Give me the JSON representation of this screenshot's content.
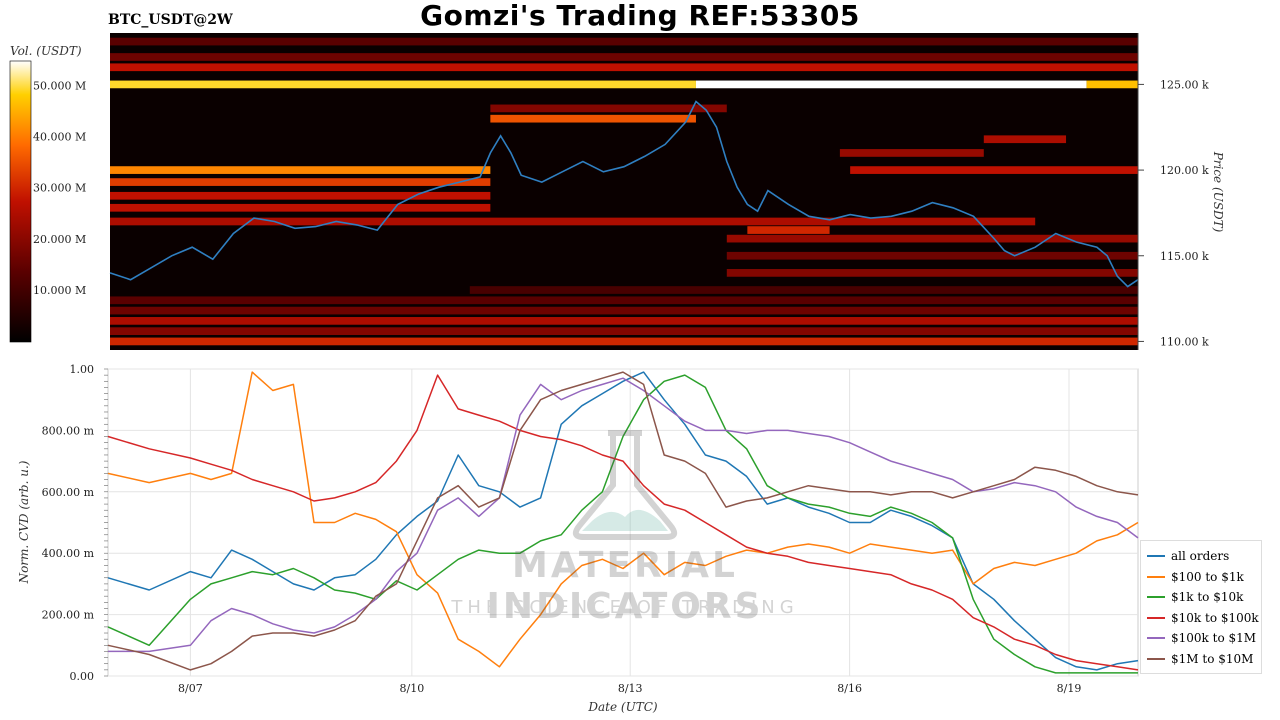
{
  "header": {
    "title": "Gomzi's Trading REF:53305",
    "symbol": "BTC_USDT@2W"
  },
  "watermark": {
    "brand": "MATERIAL INDICATORS",
    "tagline": "THE SCIENCE OF TRADING"
  },
  "chart_data": [
    {
      "type": "heatmap",
      "title": "BTC_USDT@2W",
      "colorbar": {
        "label": "Vol. (USDT)",
        "ticks": [
          "10.000 M",
          "20.000 M",
          "30.000 M",
          "40.000 M",
          "50.000 M"
        ],
        "range": [
          0,
          55
        ],
        "colors": [
          "#000000",
          "#5a0000",
          "#c01000",
          "#ff6a00",
          "#ffd000",
          "#ffffff"
        ]
      },
      "ylabel": "Price (USDT)",
      "yticks": [
        "110.00 k",
        "115.00 k",
        "120.00 k",
        "125.00 k"
      ],
      "ylim": [
        109.5,
        128
      ],
      "bands": [
        {
          "price": 110.0,
          "intensity": 0.55,
          "from": 0,
          "to": 1
        },
        {
          "price": 110.6,
          "intensity": 0.35,
          "from": 0,
          "to": 1
        },
        {
          "price": 111.2,
          "intensity": 0.45,
          "from": 0,
          "to": 1
        },
        {
          "price": 111.8,
          "intensity": 0.3,
          "from": 0,
          "to": 1
        },
        {
          "price": 112.4,
          "intensity": 0.25,
          "from": 0,
          "to": 1
        },
        {
          "price": 113.0,
          "intensity": 0.2,
          "from": 0.35,
          "to": 1
        },
        {
          "price": 114.0,
          "intensity": 0.35,
          "from": 0.6,
          "to": 1
        },
        {
          "price": 115.0,
          "intensity": 0.3,
          "from": 0.6,
          "to": 1
        },
        {
          "price": 116.0,
          "intensity": 0.4,
          "from": 0.6,
          "to": 1
        },
        {
          "price": 116.5,
          "intensity": 0.55,
          "from": 0.62,
          "to": 0.7
        },
        {
          "price": 117.0,
          "intensity": 0.45,
          "from": 0.0,
          "to": 0.9
        },
        {
          "price": 117.8,
          "intensity": 0.5,
          "from": 0.0,
          "to": 0.37
        },
        {
          "price": 118.5,
          "intensity": 0.5,
          "from": 0.0,
          "to": 0.37
        },
        {
          "price": 119.3,
          "intensity": 0.6,
          "from": 0.0,
          "to": 0.37
        },
        {
          "price": 120.0,
          "intensity": 0.75,
          "from": 0.0,
          "to": 0.37
        },
        {
          "price": 120.0,
          "intensity": 0.5,
          "from": 0.72,
          "to": 1
        },
        {
          "price": 121.0,
          "intensity": 0.4,
          "from": 0.71,
          "to": 0.85
        },
        {
          "price": 121.8,
          "intensity": 0.45,
          "from": 0.85,
          "to": 0.93
        },
        {
          "price": 123.0,
          "intensity": 0.65,
          "from": 0.37,
          "to": 0.57
        },
        {
          "price": 123.6,
          "intensity": 0.35,
          "from": 0.37,
          "to": 0.6
        },
        {
          "price": 125.0,
          "intensity": 0.9,
          "from": 0.0,
          "to": 0.57
        },
        {
          "price": 125.0,
          "intensity": 1.0,
          "from": 0.57,
          "to": 0.95
        },
        {
          "price": 125.0,
          "intensity": 0.85,
          "from": 0.95,
          "to": 1
        },
        {
          "price": 126.0,
          "intensity": 0.5,
          "from": 0.0,
          "to": 1
        },
        {
          "price": 126.6,
          "intensity": 0.3,
          "from": 0.0,
          "to": 1
        },
        {
          "price": 127.5,
          "intensity": 0.25,
          "from": 0.0,
          "to": 1
        }
      ],
      "price_line": {
        "name": "price",
        "color": "#2f7fc1",
        "x": [
          0,
          0.02,
          0.04,
          0.06,
          0.08,
          0.1,
          0.12,
          0.14,
          0.16,
          0.18,
          0.2,
          0.22,
          0.24,
          0.26,
          0.28,
          0.3,
          0.32,
          0.34,
          0.36,
          0.37,
          0.38,
          0.39,
          0.4,
          0.42,
          0.44,
          0.46,
          0.48,
          0.5,
          0.52,
          0.54,
          0.56,
          0.57,
          0.58,
          0.59,
          0.6,
          0.61,
          0.62,
          0.63,
          0.64,
          0.66,
          0.68,
          0.7,
          0.72,
          0.74,
          0.76,
          0.78,
          0.8,
          0.82,
          0.84,
          0.86,
          0.87,
          0.88,
          0.9,
          0.92,
          0.94,
          0.96,
          0.97,
          0.98,
          0.99,
          1.0
        ],
        "y": [
          114.0,
          113.6,
          114.3,
          115.0,
          115.5,
          114.8,
          116.3,
          117.2,
          117.0,
          116.6,
          116.7,
          117.0,
          116.8,
          116.5,
          118.0,
          118.6,
          119.0,
          119.3,
          119.6,
          121.0,
          122.0,
          121.0,
          119.7,
          119.3,
          119.9,
          120.5,
          119.9,
          120.2,
          120.8,
          121.5,
          122.8,
          124.0,
          123.5,
          122.5,
          120.5,
          119.0,
          118.0,
          117.6,
          118.8,
          118.0,
          117.3,
          117.1,
          117.4,
          117.2,
          117.3,
          117.6,
          118.1,
          117.8,
          117.3,
          116.0,
          115.3,
          115.0,
          115.5,
          116.3,
          115.8,
          115.5,
          115.0,
          113.8,
          113.2,
          113.6
        ]
      }
    },
    {
      "type": "line",
      "xlabel": "Date (UTC)",
      "ylabel": "Norm. CVD (arb. u.)",
      "xticks": [
        "8/07",
        "8/10",
        "8/13",
        "8/16",
        "8/19"
      ],
      "yticks": [
        "0.00",
        "200.00 m",
        "400.00 m",
        "600.00 m",
        "800.00 m",
        "1.00"
      ],
      "ylim": [
        0,
        1
      ],
      "grid": true,
      "legend": "right",
      "x": [
        0,
        0.04,
        0.08,
        0.1,
        0.12,
        0.14,
        0.16,
        0.18,
        0.2,
        0.22,
        0.24,
        0.26,
        0.28,
        0.3,
        0.32,
        0.34,
        0.36,
        0.38,
        0.4,
        0.42,
        0.44,
        0.46,
        0.48,
        0.5,
        0.52,
        0.54,
        0.56,
        0.58,
        0.6,
        0.62,
        0.64,
        0.66,
        0.68,
        0.7,
        0.72,
        0.74,
        0.76,
        0.78,
        0.8,
        0.82,
        0.84,
        0.86,
        0.88,
        0.9,
        0.92,
        0.94,
        0.96,
        0.98,
        1.0
      ],
      "series": [
        {
          "name": "all orders",
          "color": "#1f77b4",
          "values": [
            0.32,
            0.28,
            0.34,
            0.32,
            0.41,
            0.38,
            0.34,
            0.3,
            0.28,
            0.32,
            0.33,
            0.38,
            0.46,
            0.52,
            0.57,
            0.72,
            0.62,
            0.6,
            0.55,
            0.58,
            0.82,
            0.88,
            0.92,
            0.96,
            0.99,
            0.9,
            0.82,
            0.72,
            0.7,
            0.65,
            0.56,
            0.58,
            0.55,
            0.53,
            0.5,
            0.5,
            0.54,
            0.52,
            0.49,
            0.45,
            0.3,
            0.25,
            0.18,
            0.12,
            0.06,
            0.03,
            0.02,
            0.04,
            0.05
          ]
        },
        {
          "name": "$100 to $1k",
          "color": "#ff7f0e",
          "values": [
            0.66,
            0.63,
            0.66,
            0.64,
            0.66,
            0.99,
            0.93,
            0.95,
            0.5,
            0.5,
            0.53,
            0.51,
            0.47,
            0.33,
            0.27,
            0.12,
            0.08,
            0.03,
            0.12,
            0.2,
            0.3,
            0.36,
            0.38,
            0.35,
            0.4,
            0.33,
            0.37,
            0.36,
            0.39,
            0.41,
            0.4,
            0.42,
            0.43,
            0.42,
            0.4,
            0.43,
            0.42,
            0.41,
            0.4,
            0.41,
            0.3,
            0.35,
            0.37,
            0.36,
            0.38,
            0.4,
            0.44,
            0.46,
            0.5
          ]
        },
        {
          "name": "$1k to $10k",
          "color": "#2ca02c",
          "values": [
            0.16,
            0.1,
            0.25,
            0.3,
            0.32,
            0.34,
            0.33,
            0.35,
            0.32,
            0.28,
            0.27,
            0.25,
            0.31,
            0.28,
            0.33,
            0.38,
            0.41,
            0.4,
            0.4,
            0.44,
            0.46,
            0.54,
            0.6,
            0.78,
            0.9,
            0.96,
            0.98,
            0.94,
            0.8,
            0.74,
            0.62,
            0.58,
            0.56,
            0.55,
            0.53,
            0.52,
            0.55,
            0.53,
            0.5,
            0.45,
            0.25,
            0.12,
            0.07,
            0.03,
            0.01,
            0.01,
            0.01,
            0.01,
            0.01
          ]
        },
        {
          "name": "$10k to $100k",
          "color": "#d62728",
          "values": [
            0.78,
            0.74,
            0.71,
            0.69,
            0.67,
            0.64,
            0.62,
            0.6,
            0.57,
            0.58,
            0.6,
            0.63,
            0.7,
            0.8,
            0.98,
            0.87,
            0.85,
            0.83,
            0.8,
            0.78,
            0.77,
            0.75,
            0.72,
            0.7,
            0.62,
            0.56,
            0.54,
            0.5,
            0.46,
            0.42,
            0.4,
            0.39,
            0.37,
            0.36,
            0.35,
            0.34,
            0.33,
            0.3,
            0.28,
            0.25,
            0.19,
            0.16,
            0.12,
            0.1,
            0.07,
            0.05,
            0.04,
            0.03,
            0.02
          ]
        },
        {
          "name": "$100k to $1M",
          "color": "#9467bd",
          "values": [
            0.08,
            0.08,
            0.1,
            0.18,
            0.22,
            0.2,
            0.17,
            0.15,
            0.14,
            0.16,
            0.2,
            0.25,
            0.34,
            0.4,
            0.54,
            0.58,
            0.52,
            0.58,
            0.85,
            0.95,
            0.9,
            0.93,
            0.95,
            0.97,
            0.93,
            0.88,
            0.83,
            0.8,
            0.8,
            0.79,
            0.8,
            0.8,
            0.79,
            0.78,
            0.76,
            0.73,
            0.7,
            0.68,
            0.66,
            0.64,
            0.6,
            0.61,
            0.63,
            0.62,
            0.6,
            0.55,
            0.52,
            0.5,
            0.45
          ]
        },
        {
          "name": "$1M to $10M",
          "color": "#8c564b",
          "values": [
            0.1,
            0.07,
            0.02,
            0.04,
            0.08,
            0.13,
            0.14,
            0.14,
            0.13,
            0.15,
            0.18,
            0.26,
            0.3,
            0.44,
            0.58,
            0.62,
            0.55,
            0.58,
            0.8,
            0.9,
            0.93,
            0.95,
            0.97,
            0.99,
            0.95,
            0.72,
            0.7,
            0.66,
            0.55,
            0.57,
            0.58,
            0.6,
            0.62,
            0.61,
            0.6,
            0.6,
            0.59,
            0.6,
            0.6,
            0.58,
            0.6,
            0.62,
            0.64,
            0.68,
            0.67,
            0.65,
            0.62,
            0.6,
            0.59
          ]
        }
      ]
    }
  ]
}
